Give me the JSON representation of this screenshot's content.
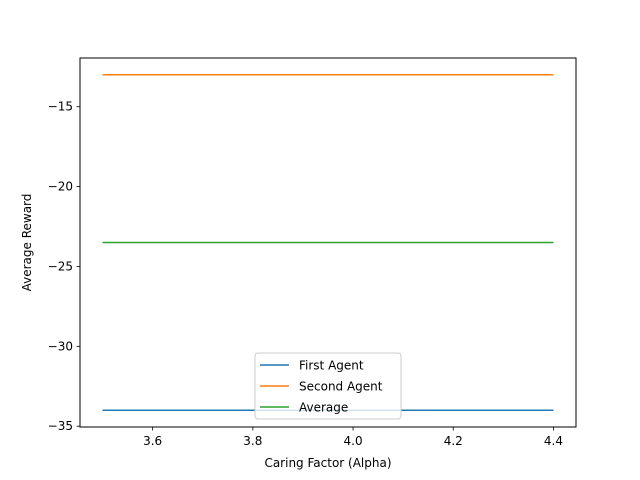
{
  "chart_data": {
    "type": "line",
    "title": "",
    "xlabel": "Caring Factor (Alpha)",
    "ylabel": "Average Reward",
    "xlim": [
      3.455,
      4.445
    ],
    "ylim": [
      -35.05,
      -11.95
    ],
    "xticks": [
      3.6,
      3.8,
      4.0,
      4.2,
      4.4
    ],
    "xtick_labels": [
      "3.6",
      "3.8",
      "4.0",
      "4.2",
      "4.4"
    ],
    "yticks": [
      -15,
      -20,
      -25,
      -30,
      -35
    ],
    "ytick_labels": [
      "−15",
      "−20",
      "−25",
      "−30",
      "−35"
    ],
    "grid": false,
    "legend_position": "lower center",
    "series": [
      {
        "name": "First Agent",
        "color": "#1f77b4",
        "x": [
          3.5,
          4.4
        ],
        "y": [
          -34.0,
          -34.0
        ]
      },
      {
        "name": "Second Agent",
        "color": "#ff7f0e",
        "x": [
          3.5,
          4.4
        ],
        "y": [
          -13.0,
          -13.0
        ]
      },
      {
        "name": "Average",
        "color": "#2ca02c",
        "x": [
          3.5,
          4.4
        ],
        "y": [
          -23.5,
          -23.5
        ]
      }
    ]
  }
}
